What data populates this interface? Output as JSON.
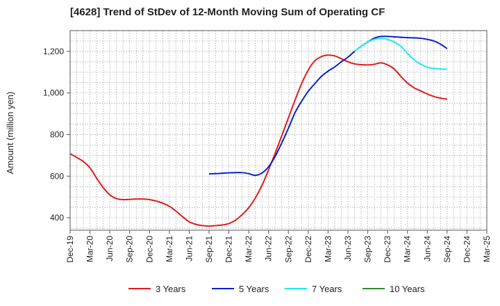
{
  "chart_data": {
    "type": "line",
    "title": "[4628]  Trend of StDev of 12-Month Moving Sum of Operating CF",
    "ylabel": "Amount (million yen)",
    "xlabel": "",
    "ylim": [
      340,
      1300
    ],
    "yticks": [
      400,
      600,
      800,
      1000,
      1200
    ],
    "ytick_labels": [
      "400",
      "600",
      "800",
      "1,000",
      "1,200"
    ],
    "x_start": "Dec-19",
    "x_end": "Mar-25",
    "xtick_labels": [
      "Dec-19",
      "Mar-20",
      "Jun-20",
      "Sep-20",
      "Dec-20",
      "Mar-21",
      "Jun-21",
      "Sep-21",
      "Dec-21",
      "Mar-22",
      "Jun-22",
      "Sep-22",
      "Dec-22",
      "Mar-23",
      "Jun-23",
      "Sep-23",
      "Dec-23",
      "Mar-24",
      "Jun-24",
      "Sep-24",
      "Dec-24",
      "Mar-25"
    ],
    "grid": true,
    "legend_position": "bottom",
    "series": [
      {
        "name": "3 Years",
        "color": "#e31a1c",
        "x": [
          "Dec-19",
          "Jan-20",
          "Feb-20",
          "Mar-20",
          "Apr-20",
          "May-20",
          "Jun-20",
          "Jul-20",
          "Aug-20",
          "Sep-20",
          "Oct-20",
          "Nov-20",
          "Dec-20",
          "Jan-21",
          "Feb-21",
          "Mar-21",
          "Apr-21",
          "May-21",
          "Jun-21",
          "Jul-21",
          "Aug-21",
          "Sep-21",
          "Oct-21",
          "Nov-21",
          "Dec-21",
          "Jan-22",
          "Feb-22",
          "Mar-22",
          "Apr-22",
          "May-22",
          "Jun-22",
          "Jul-22",
          "Aug-22",
          "Sep-22",
          "Oct-22",
          "Nov-22",
          "Dec-22",
          "Jan-23",
          "Feb-23",
          "Mar-23",
          "Apr-23",
          "May-23",
          "Jun-23",
          "Jul-23",
          "Aug-23",
          "Sep-23",
          "Oct-23",
          "Nov-23",
          "Dec-23",
          "Jan-24",
          "Feb-24",
          "Mar-24",
          "Apr-24",
          "May-24",
          "Jun-24",
          "Jul-24",
          "Aug-24",
          "Sep-24"
        ],
        "values": [
          708,
          690,
          670,
          640,
          590,
          545,
          510,
          492,
          487,
          488,
          490,
          490,
          487,
          480,
          470,
          455,
          432,
          405,
          380,
          368,
          362,
          360,
          362,
          365,
          372,
          388,
          415,
          448,
          495,
          555,
          630,
          710,
          795,
          880,
          965,
          1045,
          1110,
          1155,
          1175,
          1182,
          1178,
          1165,
          1150,
          1140,
          1136,
          1135,
          1138,
          1145,
          1135,
          1115,
          1080,
          1048,
          1025,
          1010,
          995,
          983,
          975,
          970
        ]
      },
      {
        "name": "5 Years",
        "color": "#0a1fcc",
        "x": [
          "Sep-21",
          "Oct-21",
          "Nov-21",
          "Dec-21",
          "Jan-22",
          "Feb-22",
          "Mar-22",
          "Apr-22",
          "May-22",
          "Jun-22",
          "Jul-22",
          "Aug-22",
          "Sep-22",
          "Oct-22",
          "Nov-22",
          "Dec-22",
          "Jan-23",
          "Feb-23",
          "Mar-23",
          "Apr-23",
          "May-23",
          "Jun-23",
          "Jul-23",
          "Aug-23",
          "Sep-23",
          "Oct-23",
          "Nov-23",
          "Dec-23",
          "Jan-24",
          "Feb-24",
          "Mar-24",
          "Apr-24",
          "May-24",
          "Jun-24",
          "Jul-24",
          "Aug-24",
          "Sep-24"
        ],
        "values": [
          611,
          612,
          614,
          616,
          617,
          617,
          612,
          604,
          615,
          645,
          695,
          760,
          830,
          905,
          960,
          1008,
          1045,
          1080,
          1105,
          1125,
          1150,
          1172,
          1200,
          1225,
          1245,
          1264,
          1272,
          1272,
          1270,
          1268,
          1266,
          1265,
          1263,
          1258,
          1250,
          1235,
          1213
        ]
      },
      {
        "name": "7 Years",
        "color": "#1de9f0",
        "x": [
          "Jul-23",
          "Aug-23",
          "Sep-23",
          "Oct-23",
          "Nov-23",
          "Dec-23",
          "Jan-24",
          "Feb-24",
          "Mar-24",
          "Apr-24",
          "May-24",
          "Jun-24",
          "Jul-24",
          "Aug-24",
          "Sep-24"
        ],
        "values": [
          1200,
          1225,
          1245,
          1258,
          1262,
          1258,
          1245,
          1225,
          1190,
          1160,
          1138,
          1124,
          1118,
          1115,
          1115
        ]
      },
      {
        "name": "10 Years",
        "color": "#2e8b2e",
        "x": [],
        "values": []
      }
    ]
  }
}
